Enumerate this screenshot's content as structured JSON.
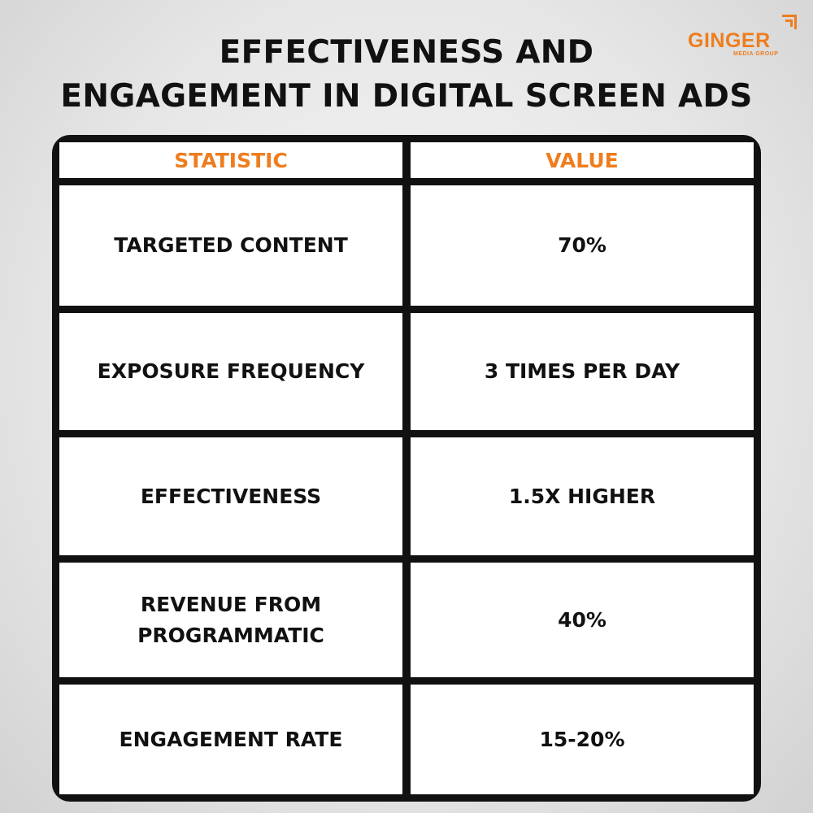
{
  "title": {
    "line1": "EFFECTIVENESS AND",
    "line2": "ENGAGEMENT IN DIGITAL SCREEN ADS"
  },
  "logo": {
    "name": "GINGER",
    "tagline": "MEDIA GROUP",
    "color": "#ee7d1f"
  },
  "table": {
    "headers": [
      "STATISTIC",
      "VALUE"
    ],
    "rows": [
      {
        "statistic": "TARGETED CONTENT",
        "value": "70%"
      },
      {
        "statistic": "EXPOSURE FREQUENCY",
        "value": "3 TIMES PER DAY"
      },
      {
        "statistic": "EFFECTIVENESS",
        "value": "1.5X HIGHER"
      },
      {
        "statistic": "REVENUE FROM PROGRAMMATIC",
        "value": "40%"
      },
      {
        "statistic": "ENGAGEMENT RATE",
        "value": "15-20%"
      }
    ]
  }
}
